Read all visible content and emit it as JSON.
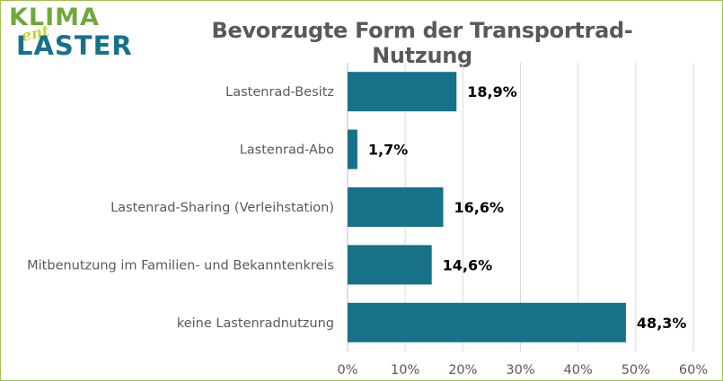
{
  "logo": {
    "line1": "KLIMA",
    "line2": "ent",
    "line3": "LASTER"
  },
  "chart_data": {
    "type": "bar",
    "orientation": "horizontal",
    "title": "Bevorzugte Form der Transportrad-Nutzung",
    "categories": [
      "Lastenrad-Besitz",
      "Lastenrad-Abo",
      "Lastenrad-Sharing (Verleihstation)",
      "Mitbenutzung im Familien- und Bekanntenkreis",
      "keine Lastenradnutzung"
    ],
    "values": [
      18.9,
      1.7,
      16.6,
      14.6,
      48.3
    ],
    "value_labels": [
      "18,9%",
      "1,7%",
      "16,6%",
      "14,6%",
      "48,3%"
    ],
    "x_ticks": [
      "0%",
      "10%",
      "20%",
      "30%",
      "40%",
      "50%",
      "60%"
    ],
    "xlim": [
      0,
      60
    ],
    "grid": true,
    "bar_color": "#177189",
    "xlabel": "",
    "ylabel": ""
  }
}
